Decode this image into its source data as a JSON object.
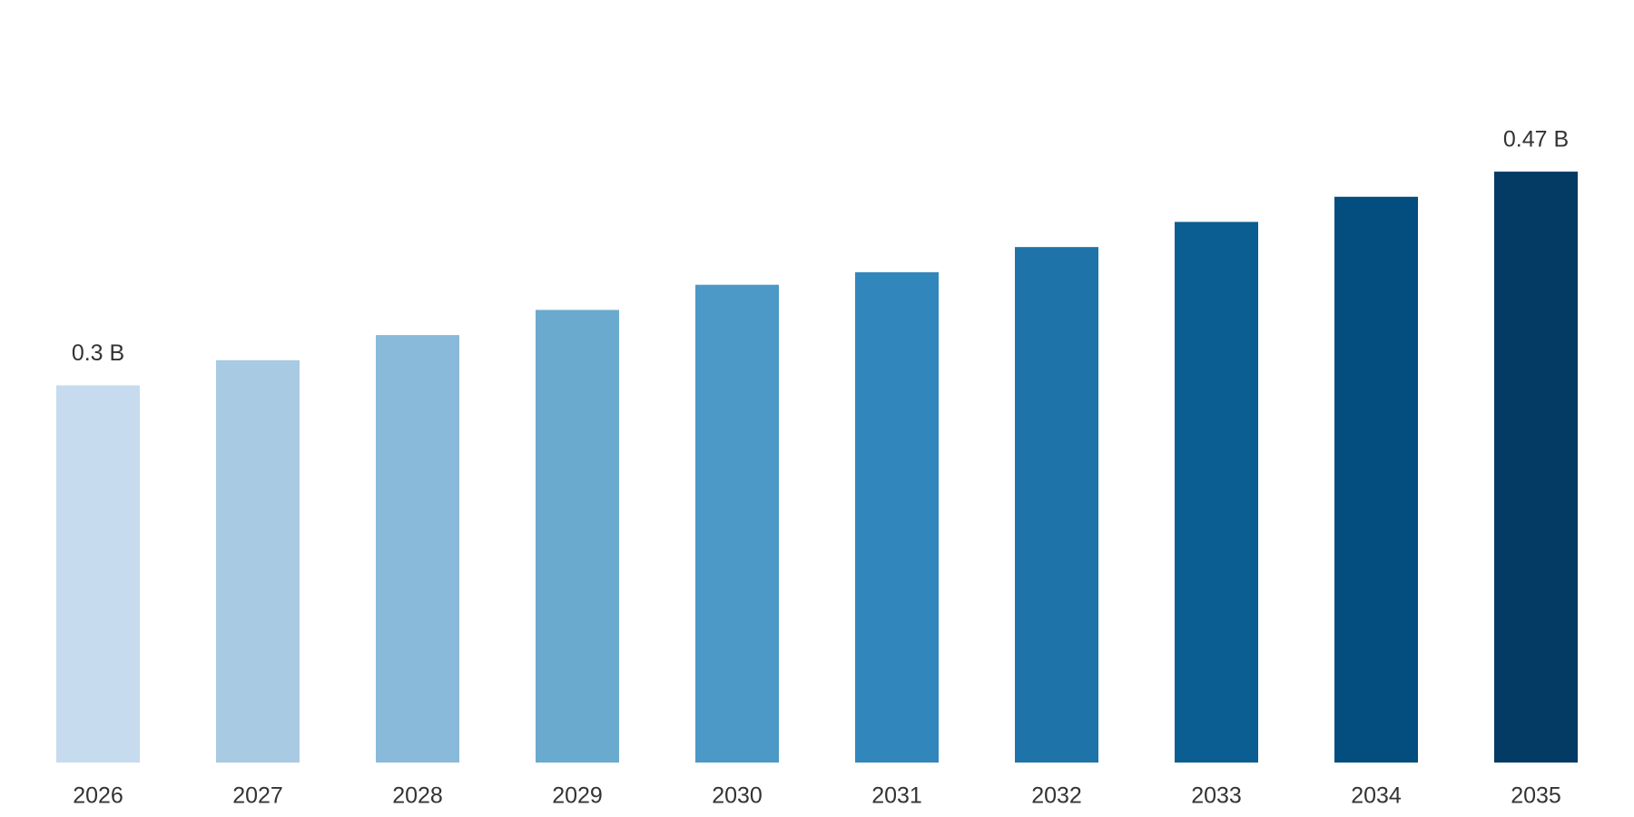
{
  "chart_data": {
    "type": "bar",
    "categories": [
      "2026",
      "2027",
      "2028",
      "2029",
      "2030",
      "2031",
      "2032",
      "2033",
      "2034",
      "2035"
    ],
    "values": [
      0.3,
      0.32,
      0.34,
      0.36,
      0.38,
      0.39,
      0.41,
      0.43,
      0.45,
      0.47
    ],
    "value_labels": [
      "0.3 B",
      null,
      null,
      null,
      null,
      null,
      null,
      null,
      null,
      "0.47 B"
    ],
    "colors": [
      "#c6dbed",
      "#a8cae2",
      "#89bad9",
      "#6aaacf",
      "#4c98c6",
      "#3187bb",
      "#1e74a8",
      "#0b5e92",
      "#034e7f",
      "#033b65"
    ],
    "ylim": [
      0,
      0.6
    ],
    "grid": false
  }
}
